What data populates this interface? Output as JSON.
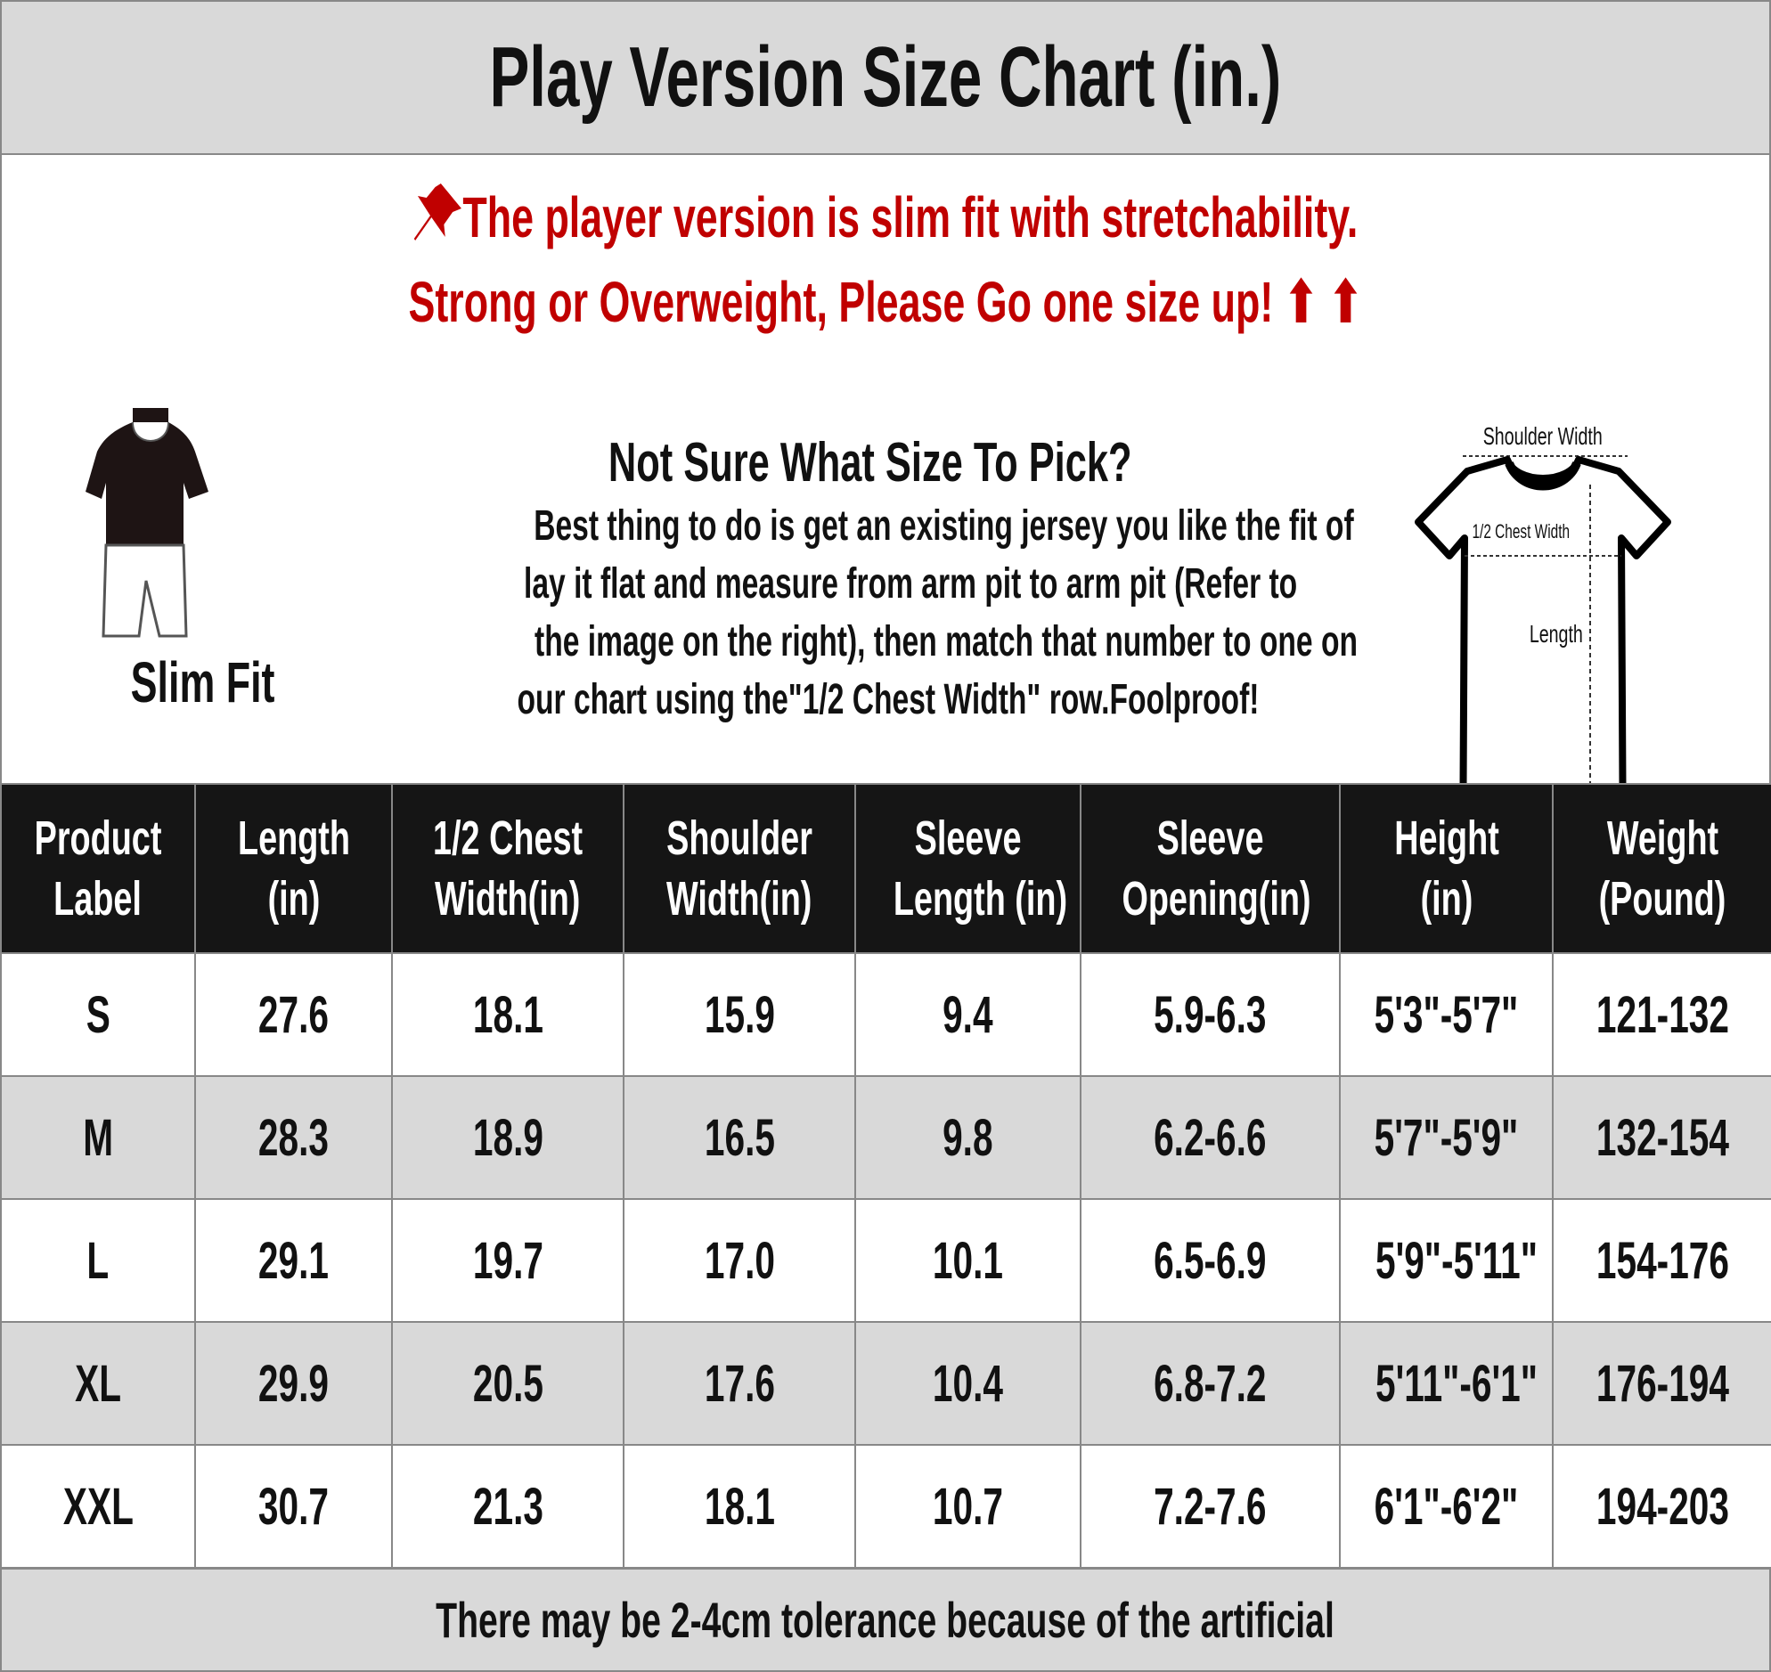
{
  "title": "Play Version Size Chart (in.)",
  "notice": {
    "line1": "The player version is slim fit with stretchability.",
    "line2": "Strong or Overweight, Please Go one size up! ⬆ ⬆",
    "icon": "pushpin-icon",
    "color": "#c00000"
  },
  "guide": {
    "heading": "Not Sure What Size To Pick?",
    "lines": [
      "Best thing to do is get an existing jersey you like the fit of",
      "lay it flat and measure from arm pit to arm pit (Refer to",
      "the image on the right), then match that number to one on",
      "our chart using the\"1/2 Chest Width\" row.Foolproof!"
    ]
  },
  "fit_label": "Slim Fit",
  "diagram": {
    "shoulder": "Shoulder Width",
    "chest": "1/2 Chest Width",
    "length": "Length"
  },
  "table": {
    "headers": [
      [
        "Product",
        "Label"
      ],
      [
        "Length",
        "(in)"
      ],
      [
        "1/2 Chest",
        "Width(in)"
      ],
      [
        "Shoulder",
        "Width(in)"
      ],
      [
        "Sleeve",
        "Length (in)"
      ],
      [
        "Sleeve",
        "Opening(in)"
      ],
      [
        "Height",
        "(in)"
      ],
      [
        "Weight",
        "(Pound)"
      ]
    ],
    "rows": [
      [
        "S",
        "27.6",
        "18.1",
        "15.9",
        "9.4",
        "5.9-6.3",
        "5'3\"-5'7\"",
        "121-132"
      ],
      [
        "M",
        "28.3",
        "18.9",
        "16.5",
        "9.8",
        "6.2-6.6",
        "5'7\"-5'9\"",
        "132-154"
      ],
      [
        "L",
        "29.1",
        "19.7",
        "17.0",
        "10.1",
        "6.5-6.9",
        "5'9\"-5'11\"",
        "154-176"
      ],
      [
        "XL",
        "29.9",
        "20.5",
        "17.6",
        "10.4",
        "6.8-7.2",
        "5'11\"-6'1\"",
        "176-194"
      ],
      [
        "XXL",
        "30.7",
        "21.3",
        "18.1",
        "10.7",
        "7.2-7.6",
        "6'1\"-6'2\"",
        "194-203"
      ]
    ]
  },
  "footer": "There may be 2-4cm tolerance because of the artificial"
}
